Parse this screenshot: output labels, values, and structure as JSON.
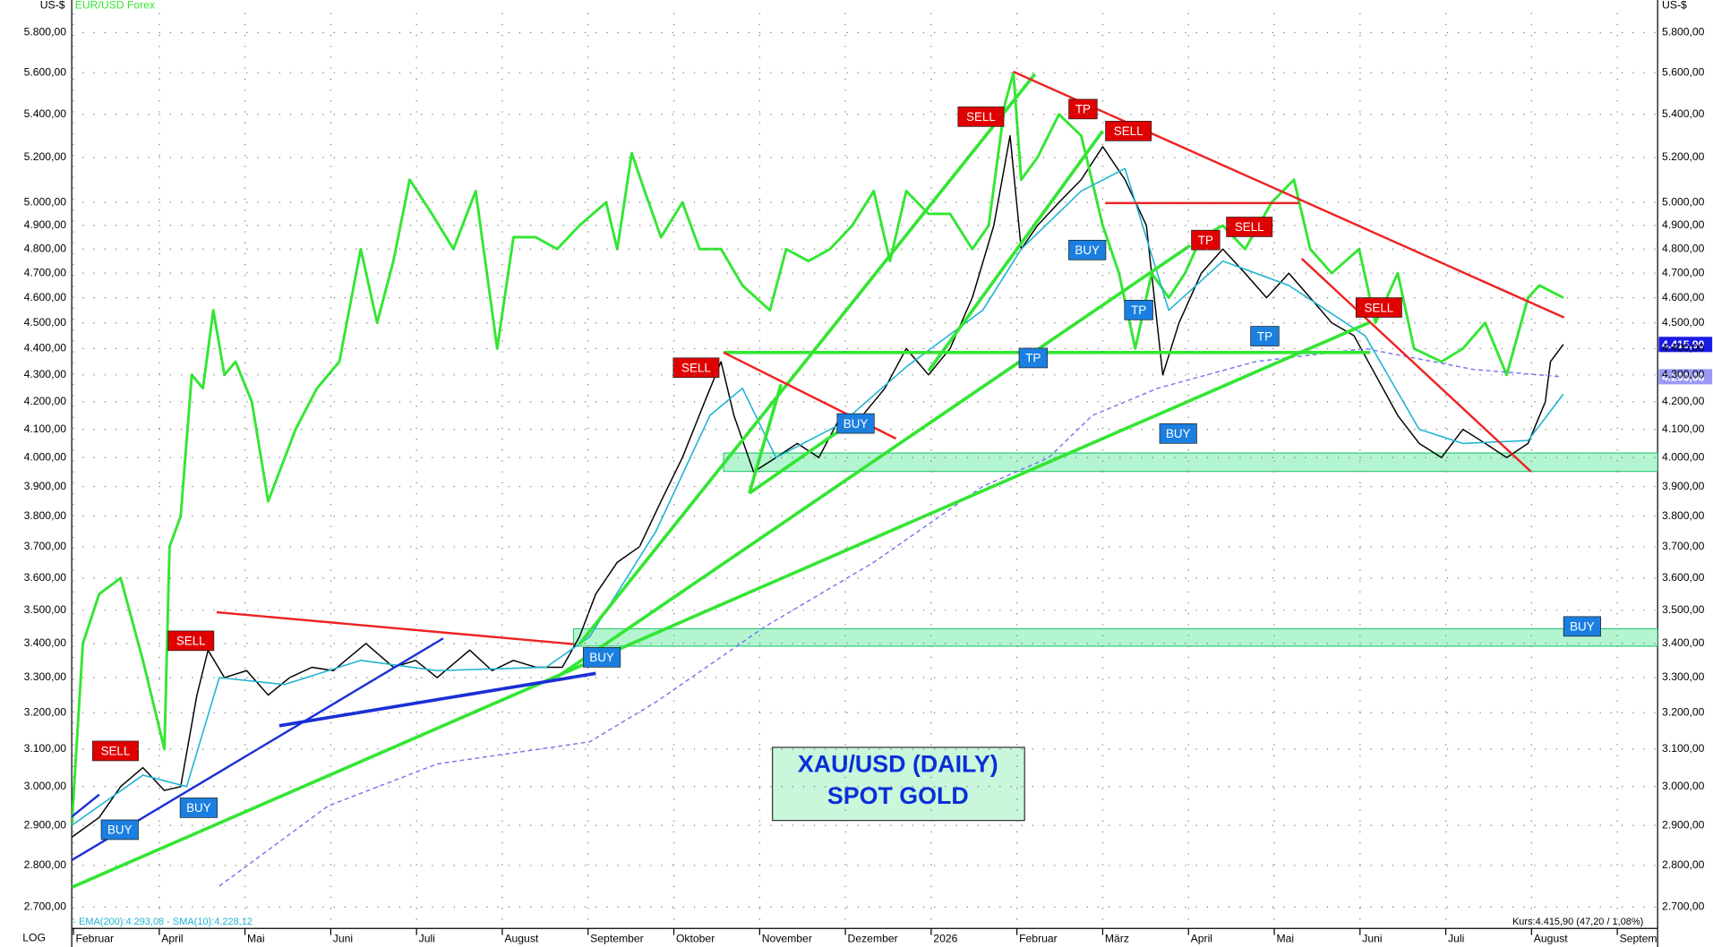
{
  "chart_data": {
    "type": "line",
    "title": "XAU/USD (DAILY)",
    "subtitle": "SPOT GOLD",
    "y_unit": "US-$",
    "scale_label": "LOG",
    "log_scale": true,
    "grid": true,
    "indicator_legend": "- EMA(200):4.293,08 - SMA(10):4.228,12",
    "quote": "Kurs:4.415,90 (47,20 / 1,08%)",
    "xlim": [
      0.98,
      19.47
    ],
    "ylim": [
      2650,
      5900
    ],
    "xticks": [
      {
        "value": 1,
        "label": "Februar"
      },
      {
        "value": 2,
        "label": "April"
      },
      {
        "value": 3,
        "label": "Mai"
      },
      {
        "value": 4,
        "label": "Juni"
      },
      {
        "value": 5,
        "label": "Juli"
      },
      {
        "value": 6,
        "label": "August"
      },
      {
        "value": 7,
        "label": "September"
      },
      {
        "value": 8,
        "label": "Oktober"
      },
      {
        "value": 9,
        "label": "November"
      },
      {
        "value": 10,
        "label": "Dezember"
      },
      {
        "value": 11,
        "label": "2026"
      },
      {
        "value": 12,
        "label": "Februar"
      },
      {
        "value": 13,
        "label": "März"
      },
      {
        "value": 14,
        "label": "April"
      },
      {
        "value": 15,
        "label": "Mai"
      },
      {
        "value": 16,
        "label": "Juni"
      },
      {
        "value": 17,
        "label": "Juli"
      },
      {
        "value": 18,
        "label": "August"
      },
      {
        "value": 19,
        "label": "Septem"
      }
    ],
    "yticks": [
      {
        "value": 2700,
        "label": "2.700,00"
      },
      {
        "value": 2800,
        "label": "2.800,00"
      },
      {
        "value": 2900,
        "label": "2.900,00"
      },
      {
        "value": 3000,
        "label": "3.000,00"
      },
      {
        "value": 3100,
        "label": "3.100,00"
      },
      {
        "value": 3200,
        "label": "3.200,00"
      },
      {
        "value": 3300,
        "label": "3.300,00"
      },
      {
        "value": 3400,
        "label": "3.400,00"
      },
      {
        "value": 3500,
        "label": "3.500,00"
      },
      {
        "value": 3600,
        "label": "3.600,00"
      },
      {
        "value": 3700,
        "label": "3.700,00"
      },
      {
        "value": 3800,
        "label": "3.800,00"
      },
      {
        "value": 3900,
        "label": "3.900,00"
      },
      {
        "value": 4000,
        "label": "4.000,00"
      },
      {
        "value": 4100,
        "label": "4.100,00"
      },
      {
        "value": 4200,
        "label": "4.200,00"
      },
      {
        "value": 4300,
        "label": "4.300,00"
      },
      {
        "value": 4400,
        "label": "4.400,00"
      },
      {
        "value": 4500,
        "label": "4.500,00"
      },
      {
        "value": 4600,
        "label": "4.600,00"
      },
      {
        "value": 4700,
        "label": "4.700,00"
      },
      {
        "value": 4800,
        "label": "4.800,00"
      },
      {
        "value": 4900,
        "label": "4.900,00"
      },
      {
        "value": 5000,
        "label": "5.000,00"
      },
      {
        "value": 5200,
        "label": "5.200,00"
      },
      {
        "value": 5400,
        "label": "5.400,00"
      },
      {
        "value": 5600,
        "label": "5.600,00"
      },
      {
        "value": 5800,
        "label": "5.800,00"
      }
    ],
    "series": [
      {
        "color": "#000000",
        "width": 1.2,
        "x": [
          0.98,
          1.3,
          1.55,
          1.81,
          2.06,
          2.25,
          2.44,
          2.57,
          2.76,
          3.02,
          3.27,
          3.52,
          3.78,
          4.03,
          4.41,
          4.73,
          4.99,
          5.24,
          5.62,
          5.88,
          6.13,
          6.39,
          6.7,
          6.9,
          7.09,
          7.34,
          7.6,
          7.85,
          8.1,
          8.36,
          8.55,
          8.7,
          8.93,
          9.19,
          9.44,
          9.69,
          9.95,
          10.2,
          10.46,
          10.71,
          10.97,
          11.22,
          11.48,
          11.73,
          11.92,
          12.05,
          12.24,
          12.49,
          12.75,
          13.0,
          13.26,
          13.51,
          13.7,
          13.89,
          14.15,
          14.4,
          14.66,
          14.91,
          15.17,
          15.42,
          15.67,
          15.93,
          16.18,
          16.44,
          16.69,
          16.95,
          17.2,
          17.46,
          17.71,
          17.96,
          18.16,
          18.22,
          18.37
        ],
        "values": [
          2870,
          2920,
          3000,
          3050,
          2990,
          3000,
          3250,
          3380,
          3300,
          3320,
          3250,
          3300,
          3330,
          3320,
          3400,
          3330,
          3350,
          3300,
          3380,
          3320,
          3350,
          3330,
          3330,
          3420,
          3550,
          3650,
          3700,
          3850,
          4000,
          4200,
          4350,
          4150,
          3950,
          4000,
          4050,
          4000,
          4150,
          4150,
          4250,
          4400,
          4300,
          4400,
          4600,
          4900,
          5300,
          4800,
          4900,
          5000,
          5100,
          5250,
          5100,
          4900,
          4300,
          4500,
          4700,
          4800,
          4700,
          4600,
          4700,
          4600,
          4500,
          4450,
          4300,
          4150,
          4050,
          4000,
          4100,
          4050,
          4000,
          4050,
          4200,
          4350,
          4415.9
        ]
      },
      {
        "name": "EUR/USD Forex",
        "color": "#33e633",
        "width": 2.4,
        "x": [
          0.98,
          1.11,
          1.3,
          1.55,
          1.81,
          2.06,
          2.12,
          2.25,
          2.38,
          2.51,
          2.63,
          2.76,
          2.89,
          3.08,
          3.27,
          3.4,
          3.59,
          3.84,
          4.1,
          4.35,
          4.54,
          4.73,
          4.92,
          5.18,
          5.43,
          5.69,
          5.94,
          6.13,
          6.39,
          6.64,
          6.9,
          7.21,
          7.34,
          7.51,
          7.66,
          7.85,
          8.1,
          8.3,
          8.55,
          8.8,
          9.12,
          9.31,
          9.57,
          9.82,
          10.08,
          10.33,
          10.52,
          10.71,
          10.97,
          11.22,
          11.48,
          11.67,
          11.86,
          11.96,
          12.05,
          12.24,
          12.49,
          12.75,
          13.0,
          13.19,
          13.38,
          13.57,
          13.77,
          13.96,
          14.15,
          14.4,
          14.66,
          14.97,
          15.23,
          15.42,
          15.67,
          15.99,
          16.18,
          16.44,
          16.63,
          16.95,
          17.2,
          17.46,
          17.71,
          17.96,
          18.09,
          18.37
        ],
        "values": [
          2900,
          3400,
          3550,
          3600,
          3350,
          3100,
          3700,
          3800,
          4300,
          4250,
          4550,
          4300,
          4350,
          4200,
          3850,
          3950,
          4100,
          4250,
          4350,
          4800,
          4500,
          4750,
          5100,
          4950,
          4800,
          5050,
          4400,
          4850,
          4850,
          4800,
          4900,
          5000,
          4800,
          5220,
          5050,
          4850,
          5000,
          4800,
          4800,
          4650,
          4550,
          4800,
          4750,
          4800,
          4900,
          5050,
          4750,
          5050,
          4950,
          4950,
          4800,
          4900,
          5450,
          5600,
          5100,
          5200,
          5400,
          5300,
          4900,
          4700,
          4400,
          4700,
          4600,
          4700,
          4850,
          4900,
          4800,
          5000,
          5100,
          4800,
          4700,
          4800,
          4500,
          4700,
          4400,
          4350,
          4400,
          4500,
          4300,
          4600,
          4650,
          4600
        ]
      },
      {
        "color": "#7777ee",
        "width": 1.2,
        "dash": true,
        "x": [
          2.7,
          3.97,
          5.24,
          7.02,
          7.79,
          9.06,
          10.33,
          11.6,
          12.37,
          12.88,
          13.64,
          14.78,
          16.06,
          17.33,
          18.35
        ],
        "values": [
          2750,
          2950,
          3060,
          3120,
          3230,
          3450,
          3650,
          3900,
          4000,
          4150,
          4250,
          4350,
          4400,
          4320,
          4293.08
        ]
      },
      {
        "color": "#1eb4d2",
        "width": 1.3,
        "x": [
          0.98,
          1.81,
          2.32,
          2.7,
          3.46,
          4.35,
          5.24,
          6.51,
          7.02,
          7.79,
          8.42,
          8.8,
          9.19,
          9.95,
          10.71,
          11.6,
          12.05,
          12.75,
          13.26,
          13.77,
          14.4,
          15.17,
          16.06,
          16.69,
          17.2,
          17.96,
          18.37
        ],
        "values": [
          2900,
          3030,
          3000,
          3300,
          3280,
          3350,
          3320,
          3330,
          3420,
          3750,
          4150,
          4250,
          4000,
          4120,
          4330,
          4550,
          4800,
          5050,
          5150,
          4550,
          4750,
          4650,
          4450,
          4100,
          4050,
          4060,
          4228.12
        ]
      }
    ],
    "zones": [
      {
        "x": [
          8.58,
          19.47
        ],
        "values": [
          3952,
          4016
        ],
        "color": "#b3f5d1"
      },
      {
        "x": [
          6.83,
          19.47
        ],
        "values": [
          3392,
          3444
        ],
        "color": "#b3f5d1"
      }
    ],
    "trendlines": [
      {
        "x": [
          0.98,
          16.12
        ],
        "values": [
          2747,
          4503
        ],
        "color": "#33e633",
        "width": 3
      },
      {
        "x": [
          6.64,
          14.02
        ],
        "values": [
          3302,
          4815
        ],
        "color": "#33e633",
        "width": 3
      },
      {
        "x": [
          6.9,
          12.21
        ],
        "values": [
          3398,
          5594
        ],
        "color": "#33e633",
        "width": 3
      },
      {
        "x": [
          8.58,
          16.12
        ],
        "values": [
          4385,
          4385
        ],
        "color": "#33e633",
        "width": 3
      },
      {
        "x": [
          8.88,
          10.2
        ],
        "values": [
          3877,
          4153
        ],
        "color": "#33e633",
        "width": 3
      },
      {
        "x": [
          8.88,
          9.25
        ],
        "values": [
          3877,
          4265
        ],
        "color": "#33e633",
        "width": 3
      },
      {
        "x": [
          10.97,
          13.0
        ],
        "values": [
          4315,
          5322
        ],
        "color": "#33e633",
        "width": 3
      },
      {
        "x": [
          2.67,
          6.83
        ],
        "values": [
          3494,
          3398
        ],
        "color": "#ee2222",
        "width": 2
      },
      {
        "x": [
          8.58,
          10.59
        ],
        "values": [
          4385,
          4067
        ],
        "color": "#ee2222",
        "width": 2
      },
      {
        "x": [
          11.96,
          18.38
        ],
        "values": [
          5605,
          4521
        ],
        "color": "#ee2222",
        "width": 2
      },
      {
        "x": [
          13.03,
          15.29
        ],
        "values": [
          4997,
          4997
        ],
        "color": "#ee2222",
        "width": 2
      },
      {
        "x": [
          15.32,
          17.99
        ],
        "values": [
          4760,
          3952
        ],
        "color": "#ee2222",
        "width": 2
      },
      {
        "x": [
          0.98,
          5.31
        ],
        "values": [
          2813,
          3415
        ],
        "color": "#1a2fd6",
        "width": 2
      },
      {
        "x": [
          3.4,
          7.09
        ],
        "values": [
          3164,
          3312
        ],
        "color": "#1a2fd6",
        "width": 3
      },
      {
        "x": [
          0.98,
          1.3
        ],
        "values": [
          2922,
          2979
        ],
        "color": "#1a2fd6",
        "width": 2
      }
    ],
    "signals": [
      {
        "label": "SELL",
        "x": 1.49,
        "y": 3095,
        "color": "#e00000"
      },
      {
        "label": "BUY",
        "x": 1.54,
        "y": 2889,
        "color": "#1a7fe0"
      },
      {
        "label": "BUY",
        "x": 2.46,
        "y": 2945,
        "color": "#1a7fe0"
      },
      {
        "label": "SELL",
        "x": 2.37,
        "y": 3408,
        "color": "#e00000"
      },
      {
        "label": "BUY",
        "x": 7.16,
        "y": 3359,
        "color": "#1a7fe0"
      },
      {
        "label": "SELL",
        "x": 8.26,
        "y": 4327,
        "color": "#e00000"
      },
      {
        "label": "BUY",
        "x": 10.12,
        "y": 4121,
        "color": "#1a7fe0"
      },
      {
        "label": "SELL",
        "x": 11.58,
        "y": 5389,
        "color": "#e00000"
      },
      {
        "label": "TP",
        "x": 12.77,
        "y": 5425,
        "color": "#e00000"
      },
      {
        "label": "SELL",
        "x": 13.3,
        "y": 5322,
        "color": "#e00000"
      },
      {
        "label": "BUY",
        "x": 12.82,
        "y": 4796,
        "color": "#1a7fe0"
      },
      {
        "label": "TP",
        "x": 12.19,
        "y": 4364,
        "color": "#1a7fe0"
      },
      {
        "label": "TP",
        "x": 13.42,
        "y": 4551,
        "color": "#1a7fe0"
      },
      {
        "label": "BUY",
        "x": 13.88,
        "y": 4085,
        "color": "#1a7fe0"
      },
      {
        "label": "TP",
        "x": 14.2,
        "y": 4838,
        "color": "#e00000"
      },
      {
        "label": "SELL",
        "x": 14.71,
        "y": 4894,
        "color": "#e00000"
      },
      {
        "label": "TP",
        "x": 14.89,
        "y": 4448,
        "color": "#1a7fe0"
      },
      {
        "label": "SELL",
        "x": 16.22,
        "y": 4561,
        "color": "#e00000"
      },
      {
        "label": "BUY",
        "x": 18.59,
        "y": 3451,
        "color": "#1a7fe0"
      }
    ],
    "price_tags": [
      {
        "value": 4415.9,
        "label": "4.415,90",
        "color": "#1a1ae6"
      },
      {
        "value": 4293.08,
        "label": "4.293,08",
        "color": "#9a9af5"
      }
    ]
  }
}
